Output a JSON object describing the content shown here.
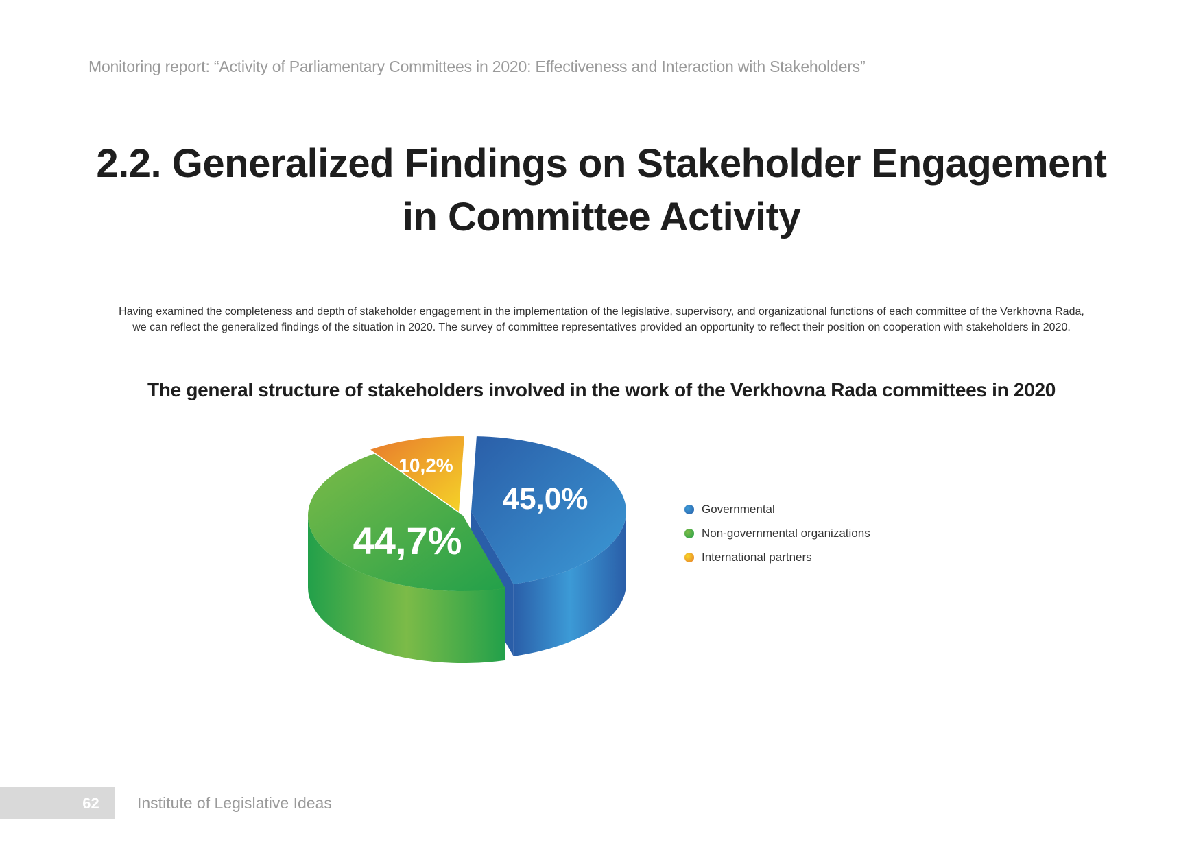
{
  "header": {
    "running_title": "Monitoring report: “Activity of Parliamentary Committees in 2020: Effectiveness and Interaction with Stakeholders”"
  },
  "section": {
    "title_line1": "2.2. Generalized Findings on Stakeholder Engagement",
    "title_line2": "in Committee Activity"
  },
  "intro": {
    "line1": "Having examined the completeness and depth of stakeholder engagement in the implementation of the legislative, supervisory, and organizational functions of each committee of the Verkhovna Rada,",
    "line2": "we can reflect the generalized findings of the situation in 2020. The survey of committee representatives provided an opportunity to reflect their position on cooperation with stakeholders in 2020."
  },
  "chart_data": {
    "type": "pie",
    "title": "The general structure of stakeholders involved in the work of the Verkhovna Rada committees in 2020",
    "categories": [
      "Governmental",
      "Non-governmental organizations",
      "International partners"
    ],
    "values": [
      45.0,
      44.7,
      10.2
    ],
    "data_labels": [
      "45,0%",
      "44,7%",
      "10,2%"
    ],
    "legend_position": "right",
    "colors": {
      "Governmental": [
        "#2a5ea8",
        "#3c9ad6"
      ],
      "Non-governmental organizations": [
        "#22a04a",
        "#7cbb48"
      ],
      "International partners": [
        "#e87a2c",
        "#f5d428"
      ]
    }
  },
  "footer": {
    "page_number": "62",
    "organization": "Institute of Legislative Ideas"
  }
}
